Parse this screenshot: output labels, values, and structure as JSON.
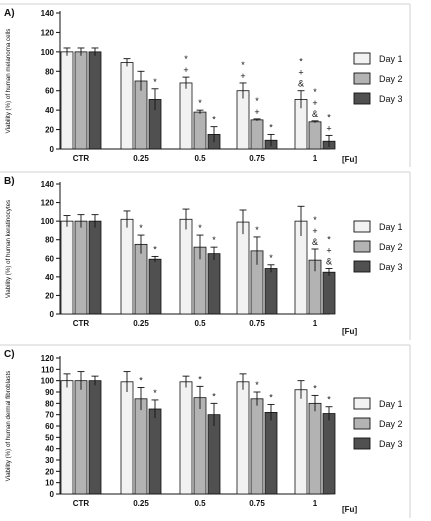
{
  "chart_data": [
    {
      "panel_label": "A)",
      "type": "bar",
      "ylabel": "Viability (%) of human melanoma cells",
      "xlabel": "[Fu]",
      "ylim": [
        0,
        140
      ],
      "yticks": [
        0,
        20,
        40,
        60,
        80,
        100,
        120,
        140
      ],
      "categories": [
        "CTR",
        "0.25",
        "0.5",
        "0.75",
        "1"
      ],
      "legend_position": "right",
      "series": [
        {
          "name": "Day 1",
          "color": "#f2f2f2",
          "values": [
            100,
            89,
            68,
            60,
            51
          ],
          "errors": [
            4,
            4,
            6,
            8,
            9
          ]
        },
        {
          "name": "Day 2",
          "color": "#b3b3b3",
          "values": [
            100,
            70,
            38,
            30,
            28
          ],
          "errors": [
            4,
            10,
            2,
            1,
            1
          ]
        },
        {
          "name": "Day 3",
          "color": "#505050",
          "values": [
            100,
            51,
            15,
            9,
            8
          ],
          "errors": [
            4,
            11,
            8,
            6,
            6
          ]
        }
      ],
      "annotations": [
        {
          "category": 1,
          "series": 2,
          "marks": [
            "*"
          ]
        },
        {
          "category": 2,
          "series": 0,
          "marks": [
            "*",
            "+"
          ]
        },
        {
          "category": 2,
          "series": 1,
          "marks": [
            "*"
          ]
        },
        {
          "category": 2,
          "series": 2,
          "marks": [
            "*"
          ]
        },
        {
          "category": 3,
          "series": 0,
          "marks": [
            "*",
            "+"
          ]
        },
        {
          "category": 3,
          "series": 1,
          "marks": [
            "*",
            "+"
          ]
        },
        {
          "category": 3,
          "series": 2,
          "marks": [
            "*"
          ]
        },
        {
          "category": 4,
          "series": 0,
          "marks": [
            "*",
            "+",
            "&"
          ]
        },
        {
          "category": 4,
          "series": 1,
          "marks": [
            "*",
            "+",
            "&"
          ]
        },
        {
          "category": 4,
          "series": 2,
          "marks": [
            "*",
            "+"
          ]
        }
      ]
    },
    {
      "panel_label": "B)",
      "type": "bar",
      "ylabel": "Viability (%) of human keratinocytes",
      "xlabel": "[Fu]",
      "ylim": [
        0,
        140
      ],
      "yticks": [
        0,
        20,
        40,
        60,
        80,
        100,
        120,
        140
      ],
      "categories": [
        "CTR",
        "0.25",
        "0.5",
        "0.75",
        "1"
      ],
      "legend_position": "right",
      "series": [
        {
          "name": "Day 1",
          "color": "#f2f2f2",
          "values": [
            100,
            102,
            102,
            99,
            100
          ],
          "errors": [
            6,
            9,
            11,
            13,
            16
          ]
        },
        {
          "name": "Day 2",
          "color": "#b3b3b3",
          "values": [
            100,
            75,
            72,
            68,
            58
          ],
          "errors": [
            7,
            10,
            13,
            15,
            12
          ]
        },
        {
          "name": "Day 3",
          "color": "#505050",
          "values": [
            100,
            59,
            65,
            49,
            45
          ],
          "errors": [
            7,
            3,
            7,
            4,
            4
          ]
        }
      ],
      "annotations": [
        {
          "category": 1,
          "series": 1,
          "marks": [
            "*"
          ]
        },
        {
          "category": 1,
          "series": 2,
          "marks": [
            "*"
          ]
        },
        {
          "category": 2,
          "series": 1,
          "marks": [
            "*"
          ]
        },
        {
          "category": 2,
          "series": 2,
          "marks": [
            "*"
          ]
        },
        {
          "category": 3,
          "series": 1,
          "marks": [
            "*"
          ]
        },
        {
          "category": 3,
          "series": 2,
          "marks": [
            "*"
          ]
        },
        {
          "category": 4,
          "series": 1,
          "marks": [
            "*",
            "+",
            "&"
          ]
        },
        {
          "category": 4,
          "series": 2,
          "marks": [
            "*",
            "+",
            "&"
          ]
        }
      ]
    },
    {
      "panel_label": "C)",
      "type": "bar",
      "ylabel": "Viability (%) of human dermal fibroblasts",
      "xlabel": "[Fu]",
      "ylim": [
        0,
        120
      ],
      "yticks": [
        0,
        10,
        20,
        30,
        40,
        50,
        60,
        70,
        80,
        90,
        100,
        110,
        120
      ],
      "categories": [
        "CTR",
        "0.25",
        "0.5",
        "0.75",
        "1"
      ],
      "legend_position": "right",
      "series": [
        {
          "name": "Day 1",
          "color": "#f2f2f2",
          "values": [
            100,
            99,
            99,
            99,
            92
          ],
          "errors": [
            6,
            9,
            5,
            7,
            8
          ]
        },
        {
          "name": "Day 2",
          "color": "#b3b3b3",
          "values": [
            100,
            84,
            85,
            84,
            80
          ],
          "errors": [
            8,
            10,
            10,
            6,
            7
          ]
        },
        {
          "name": "Day 3",
          "color": "#505050",
          "values": [
            100,
            75,
            70,
            72,
            71
          ],
          "errors": [
            4,
            8,
            10,
            7,
            6
          ]
        }
      ],
      "annotations": [
        {
          "category": 1,
          "series": 1,
          "marks": [
            "*"
          ]
        },
        {
          "category": 1,
          "series": 2,
          "marks": [
            "*"
          ]
        },
        {
          "category": 2,
          "series": 1,
          "marks": [
            "*"
          ]
        },
        {
          "category": 2,
          "series": 2,
          "marks": [
            "*"
          ]
        },
        {
          "category": 3,
          "series": 1,
          "marks": [
            "*"
          ]
        },
        {
          "category": 3,
          "series": 2,
          "marks": [
            "*"
          ]
        },
        {
          "category": 4,
          "series": 1,
          "marks": [
            "*"
          ]
        },
        {
          "category": 4,
          "series": 2,
          "marks": [
            "*"
          ]
        }
      ]
    }
  ]
}
